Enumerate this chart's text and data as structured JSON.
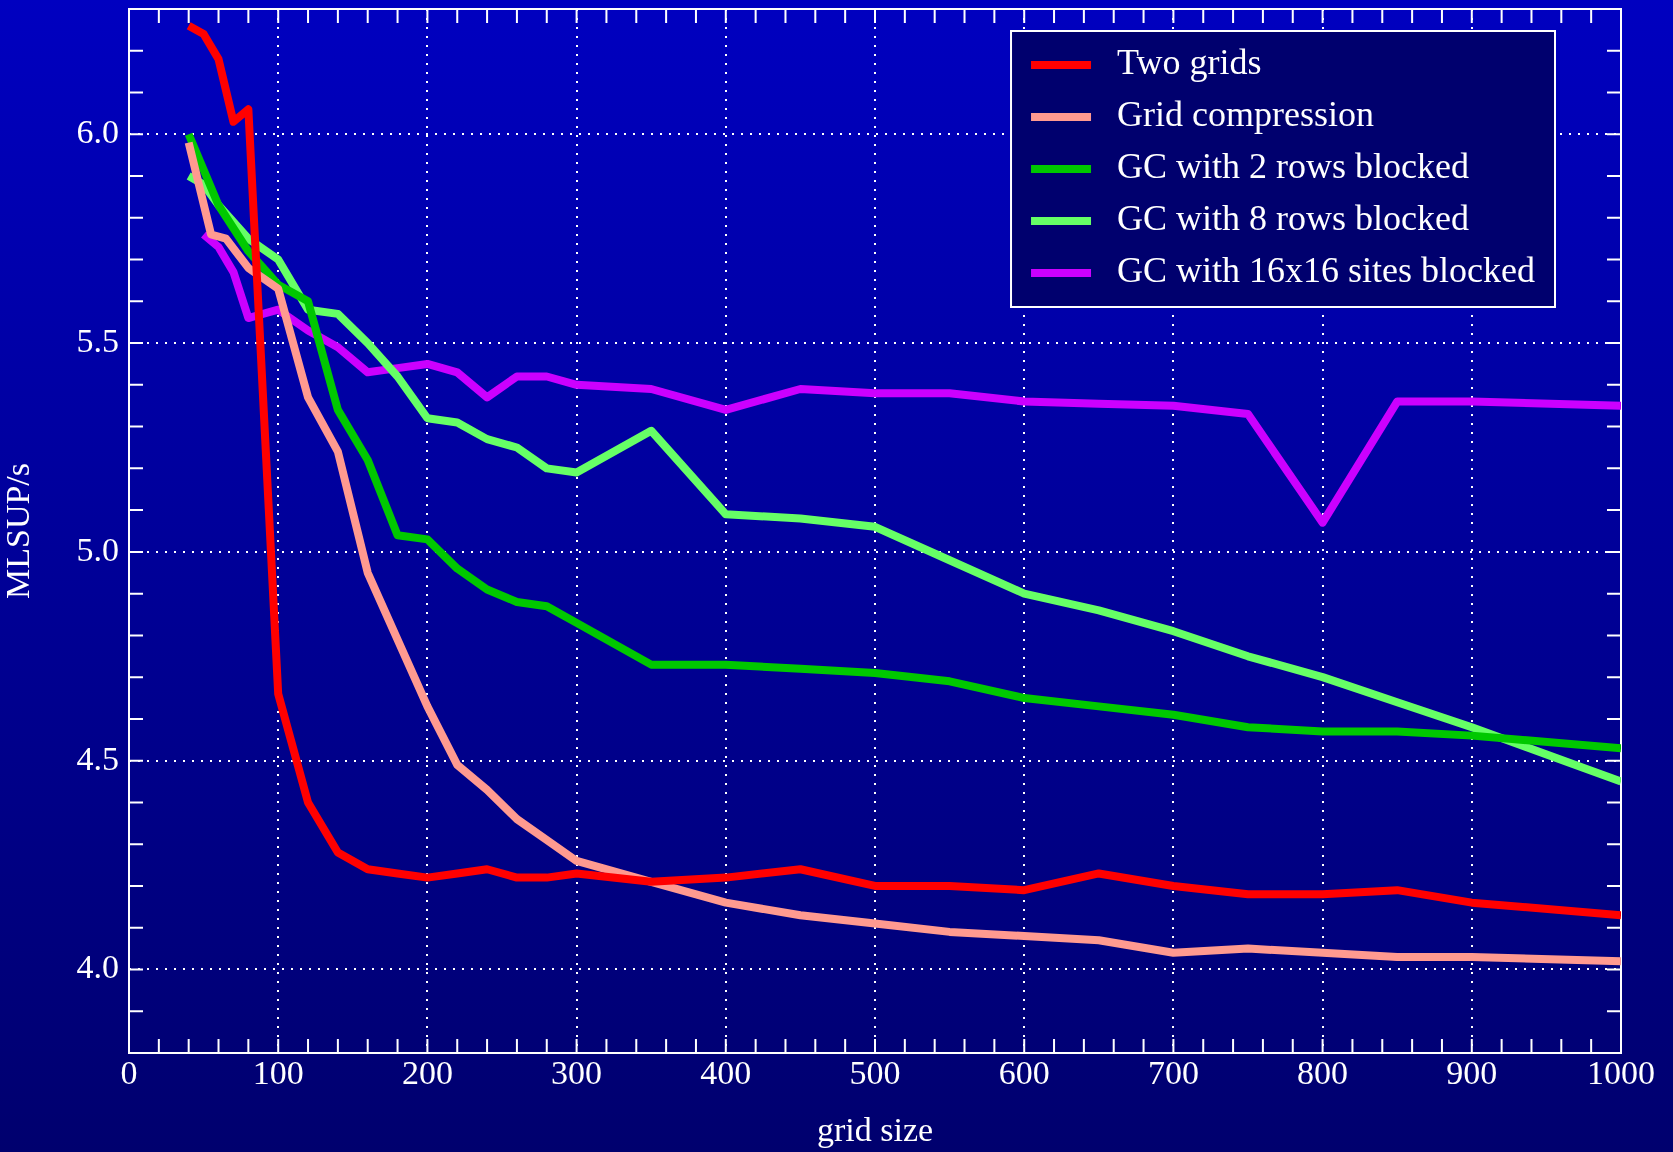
{
  "chart_data": {
    "type": "line",
    "xlabel": "grid size",
    "ylabel": "MLSUP/s",
    "xlim": [
      0,
      1000
    ],
    "ylim": [
      3.8,
      6.3
    ],
    "xticks": [
      0,
      {
        "value": 20,
        "label": null
      },
      {
        "value": 40,
        "label": null
      },
      {
        "value": 60,
        "label": null
      },
      {
        "value": 80,
        "label": null
      },
      100,
      {
        "value": 120,
        "label": null
      },
      {
        "value": 140,
        "label": null
      },
      {
        "value": 160,
        "label": null
      },
      {
        "value": 180,
        "label": null
      },
      200,
      {
        "value": 220,
        "label": null
      },
      {
        "value": 240,
        "label": null
      },
      {
        "value": 260,
        "label": null
      },
      {
        "value": 280,
        "label": null
      },
      300,
      {
        "value": 320,
        "label": null
      },
      {
        "value": 340,
        "label": null
      },
      {
        "value": 360,
        "label": null
      },
      {
        "value": 380,
        "label": null
      },
      400,
      {
        "value": 420,
        "label": null
      },
      {
        "value": 440,
        "label": null
      },
      {
        "value": 460,
        "label": null
      },
      {
        "value": 480,
        "label": null
      },
      500,
      {
        "value": 520,
        "label": null
      },
      {
        "value": 540,
        "label": null
      },
      {
        "value": 560,
        "label": null
      },
      {
        "value": 580,
        "label": null
      },
      600,
      {
        "value": 620,
        "label": null
      },
      {
        "value": 640,
        "label": null
      },
      {
        "value": 660,
        "label": null
      },
      {
        "value": 680,
        "label": null
      },
      700,
      {
        "value": 720,
        "label": null
      },
      {
        "value": 740,
        "label": null
      },
      {
        "value": 760,
        "label": null
      },
      {
        "value": 780,
        "label": null
      },
      800,
      {
        "value": 820,
        "label": null
      },
      {
        "value": 840,
        "label": null
      },
      {
        "value": 860,
        "label": null
      },
      {
        "value": 880,
        "label": null
      },
      900,
      {
        "value": 920,
        "label": null
      },
      {
        "value": 940,
        "label": null
      },
      {
        "value": 960,
        "label": null
      },
      {
        "value": 980,
        "label": null
      },
      1000
    ],
    "yticks": [
      {
        "value": 3.9,
        "label": null
      },
      {
        "value": 4.0,
        "label": "4.0"
      },
      {
        "value": 4.1,
        "label": null
      },
      {
        "value": 4.2,
        "label": null
      },
      {
        "value": 4.3,
        "label": null
      },
      {
        "value": 4.4,
        "label": null
      },
      {
        "value": 4.5,
        "label": "4.5"
      },
      {
        "value": 4.6,
        "label": null
      },
      {
        "value": 4.7,
        "label": null
      },
      {
        "value": 4.8,
        "label": null
      },
      {
        "value": 4.9,
        "label": null
      },
      {
        "value": 5.0,
        "label": "5.0"
      },
      {
        "value": 5.1,
        "label": null
      },
      {
        "value": 5.2,
        "label": null
      },
      {
        "value": 5.3,
        "label": null
      },
      {
        "value": 5.4,
        "label": null
      },
      {
        "value": 5.5,
        "label": "5.5"
      },
      {
        "value": 5.6,
        "label": null
      },
      {
        "value": 5.7,
        "label": null
      },
      {
        "value": 5.8,
        "label": null
      },
      {
        "value": 5.9,
        "label": null
      },
      {
        "value": 6.0,
        "label": "6.0"
      },
      {
        "value": 6.1,
        "label": null
      },
      {
        "value": 6.2,
        "label": null
      }
    ],
    "grid": true,
    "legend": "top right",
    "marker": "none",
    "line_style": "solid",
    "series": [
      {
        "name": "Two grids",
        "color": "#ff0000",
        "x": [
          40,
          50,
          60,
          70,
          80,
          100,
          120,
          140,
          160,
          180,
          200,
          220,
          240,
          260,
          280,
          300,
          350,
          400,
          450,
          500,
          550,
          600,
          650,
          700,
          750,
          800,
          850,
          900,
          1000
        ],
        "values": [
          6.26,
          6.24,
          6.18,
          6.03,
          6.06,
          4.66,
          4.4,
          4.28,
          4.24,
          4.23,
          4.22,
          4.23,
          4.24,
          4.22,
          4.22,
          4.23,
          4.21,
          4.22,
          4.24,
          4.2,
          4.2,
          4.19,
          4.23,
          4.2,
          4.18,
          4.18,
          4.19,
          4.16,
          4.13
        ]
      },
      {
        "name": "Grid compression",
        "color": "#ff9a90",
        "x": [
          40,
          55,
          65,
          80,
          100,
          120,
          140,
          160,
          200,
          220,
          240,
          260,
          280,
          300,
          350,
          400,
          450,
          500,
          550,
          600,
          650,
          700,
          750,
          800,
          850,
          900,
          1000
        ],
        "values": [
          5.98,
          5.76,
          5.75,
          5.68,
          5.63,
          5.37,
          5.24,
          4.95,
          4.63,
          4.49,
          4.43,
          4.36,
          4.31,
          4.26,
          4.21,
          4.16,
          4.13,
          4.11,
          4.09,
          4.08,
          4.07,
          4.04,
          4.05,
          4.04,
          4.03,
          4.03,
          4.02
        ]
      },
      {
        "name": "GC with 2 rows blocked",
        "color": "#00c800",
        "x": [
          40,
          60,
          80,
          100,
          120,
          140,
          160,
          180,
          200,
          220,
          240,
          260,
          280,
          300,
          350,
          400,
          450,
          500,
          550,
          600,
          650,
          700,
          750,
          800,
          850,
          900,
          1000
        ],
        "values": [
          6.0,
          5.83,
          5.72,
          5.64,
          5.6,
          5.34,
          5.22,
          5.04,
          5.03,
          4.96,
          4.91,
          4.88,
          4.87,
          4.83,
          4.73,
          4.73,
          4.72,
          4.71,
          4.69,
          4.65,
          4.63,
          4.61,
          4.58,
          4.57,
          4.57,
          4.56,
          4.53
        ]
      },
      {
        "name": "GC with 8 rows blocked",
        "color": "#66ff66",
        "x": [
          40,
          50,
          60,
          70,
          80,
          100,
          120,
          140,
          160,
          180,
          200,
          220,
          240,
          260,
          280,
          300,
          350,
          400,
          450,
          500,
          550,
          600,
          650,
          700,
          750,
          800,
          850,
          900,
          1000
        ],
        "values": [
          5.9,
          5.88,
          5.83,
          5.79,
          5.75,
          5.7,
          5.58,
          5.57,
          5.5,
          5.42,
          5.32,
          5.31,
          5.27,
          5.25,
          5.2,
          5.19,
          5.29,
          5.09,
          5.08,
          5.06,
          4.98,
          4.9,
          4.86,
          4.81,
          4.75,
          4.7,
          4.64,
          4.58,
          4.45
        ]
      },
      {
        "name": "GC with 16x16 sites blocked",
        "color": "#cc00ff",
        "x": [
          50,
          60,
          70,
          80,
          100,
          120,
          140,
          160,
          180,
          200,
          220,
          240,
          260,
          280,
          300,
          350,
          400,
          450,
          500,
          550,
          600,
          650,
          700,
          750,
          800,
          850,
          900,
          1000
        ],
        "values": [
          5.76,
          5.73,
          5.67,
          5.56,
          5.58,
          5.53,
          5.49,
          5.43,
          5.44,
          5.45,
          5.43,
          5.37,
          5.42,
          5.42,
          5.4,
          5.39,
          5.34,
          5.39,
          5.38,
          5.38,
          5.36,
          5.355,
          5.35,
          5.33,
          5.07,
          5.36,
          5.36,
          5.35
        ]
      }
    ]
  }
}
